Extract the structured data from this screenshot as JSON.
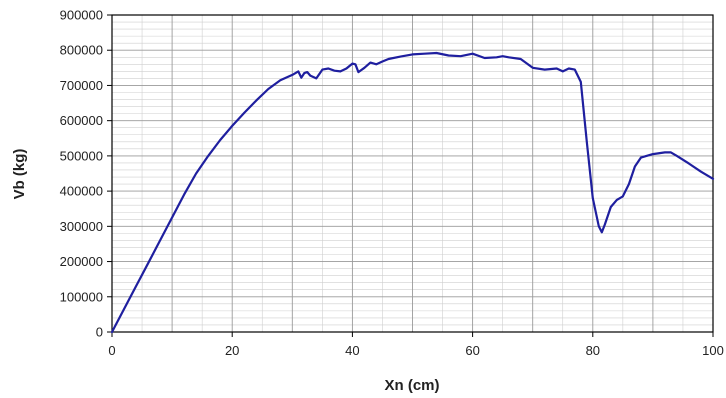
{
  "chart_data": {
    "type": "line",
    "title": "",
    "xlabel": "Xn (cm)",
    "ylabel": "Vb (kg)",
    "xlim": [
      0,
      100
    ],
    "ylim": [
      0,
      900000
    ],
    "x_ticks": [
      0,
      20,
      40,
      60,
      80,
      100
    ],
    "x_tick_labels": [
      "0",
      "20",
      "40",
      "60",
      "80",
      "100"
    ],
    "y_ticks": [
      0,
      100000,
      200000,
      300000,
      400000,
      500000,
      600000,
      700000,
      800000,
      900000
    ],
    "y_tick_labels": [
      "0",
      "100000",
      "200000",
      "300000",
      "400000",
      "500000",
      "600000",
      "700000",
      "800000",
      "900000"
    ],
    "grid": true,
    "legend": "none",
    "colors": {
      "series": "#1f1f9f",
      "grid_major": "#9a9a9a",
      "grid_minor": "#cfcfcf",
      "axis": "#000000"
    },
    "series": [
      {
        "x": [
          0,
          2,
          4,
          6,
          8,
          10,
          12,
          14,
          16,
          18,
          20,
          22,
          24,
          26,
          28,
          30,
          31,
          31.5,
          32,
          32.5,
          33,
          34,
          35,
          36,
          37,
          38,
          39,
          40,
          40.5,
          41,
          42,
          43,
          44,
          45,
          46,
          48,
          50,
          52,
          54,
          56,
          58,
          60,
          62,
          64,
          65,
          66,
          68,
          70,
          72,
          74,
          75,
          76,
          77,
          78,
          79,
          80,
          81,
          81.5,
          82,
          83,
          84,
          85,
          86,
          87,
          88,
          90,
          92,
          93,
          94,
          96,
          98,
          100
        ],
        "y": [
          0,
          65000,
          130000,
          195000,
          260000,
          325000,
          390000,
          450000,
          500000,
          545000,
          585000,
          622000,
          657000,
          690000,
          715000,
          730000,
          740000,
          722000,
          735000,
          738000,
          728000,
          720000,
          745000,
          748000,
          742000,
          740000,
          748000,
          762000,
          760000,
          738000,
          750000,
          765000,
          760000,
          768000,
          775000,
          782000,
          788000,
          790000,
          792000,
          785000,
          783000,
          790000,
          778000,
          780000,
          783000,
          780000,
          775000,
          750000,
          745000,
          748000,
          740000,
          748000,
          745000,
          710000,
          540000,
          380000,
          300000,
          283000,
          305000,
          355000,
          375000,
          385000,
          420000,
          470000,
          495000,
          505000,
          510000,
          510000,
          500000,
          478000,
          455000,
          435000
        ]
      }
    ]
  }
}
